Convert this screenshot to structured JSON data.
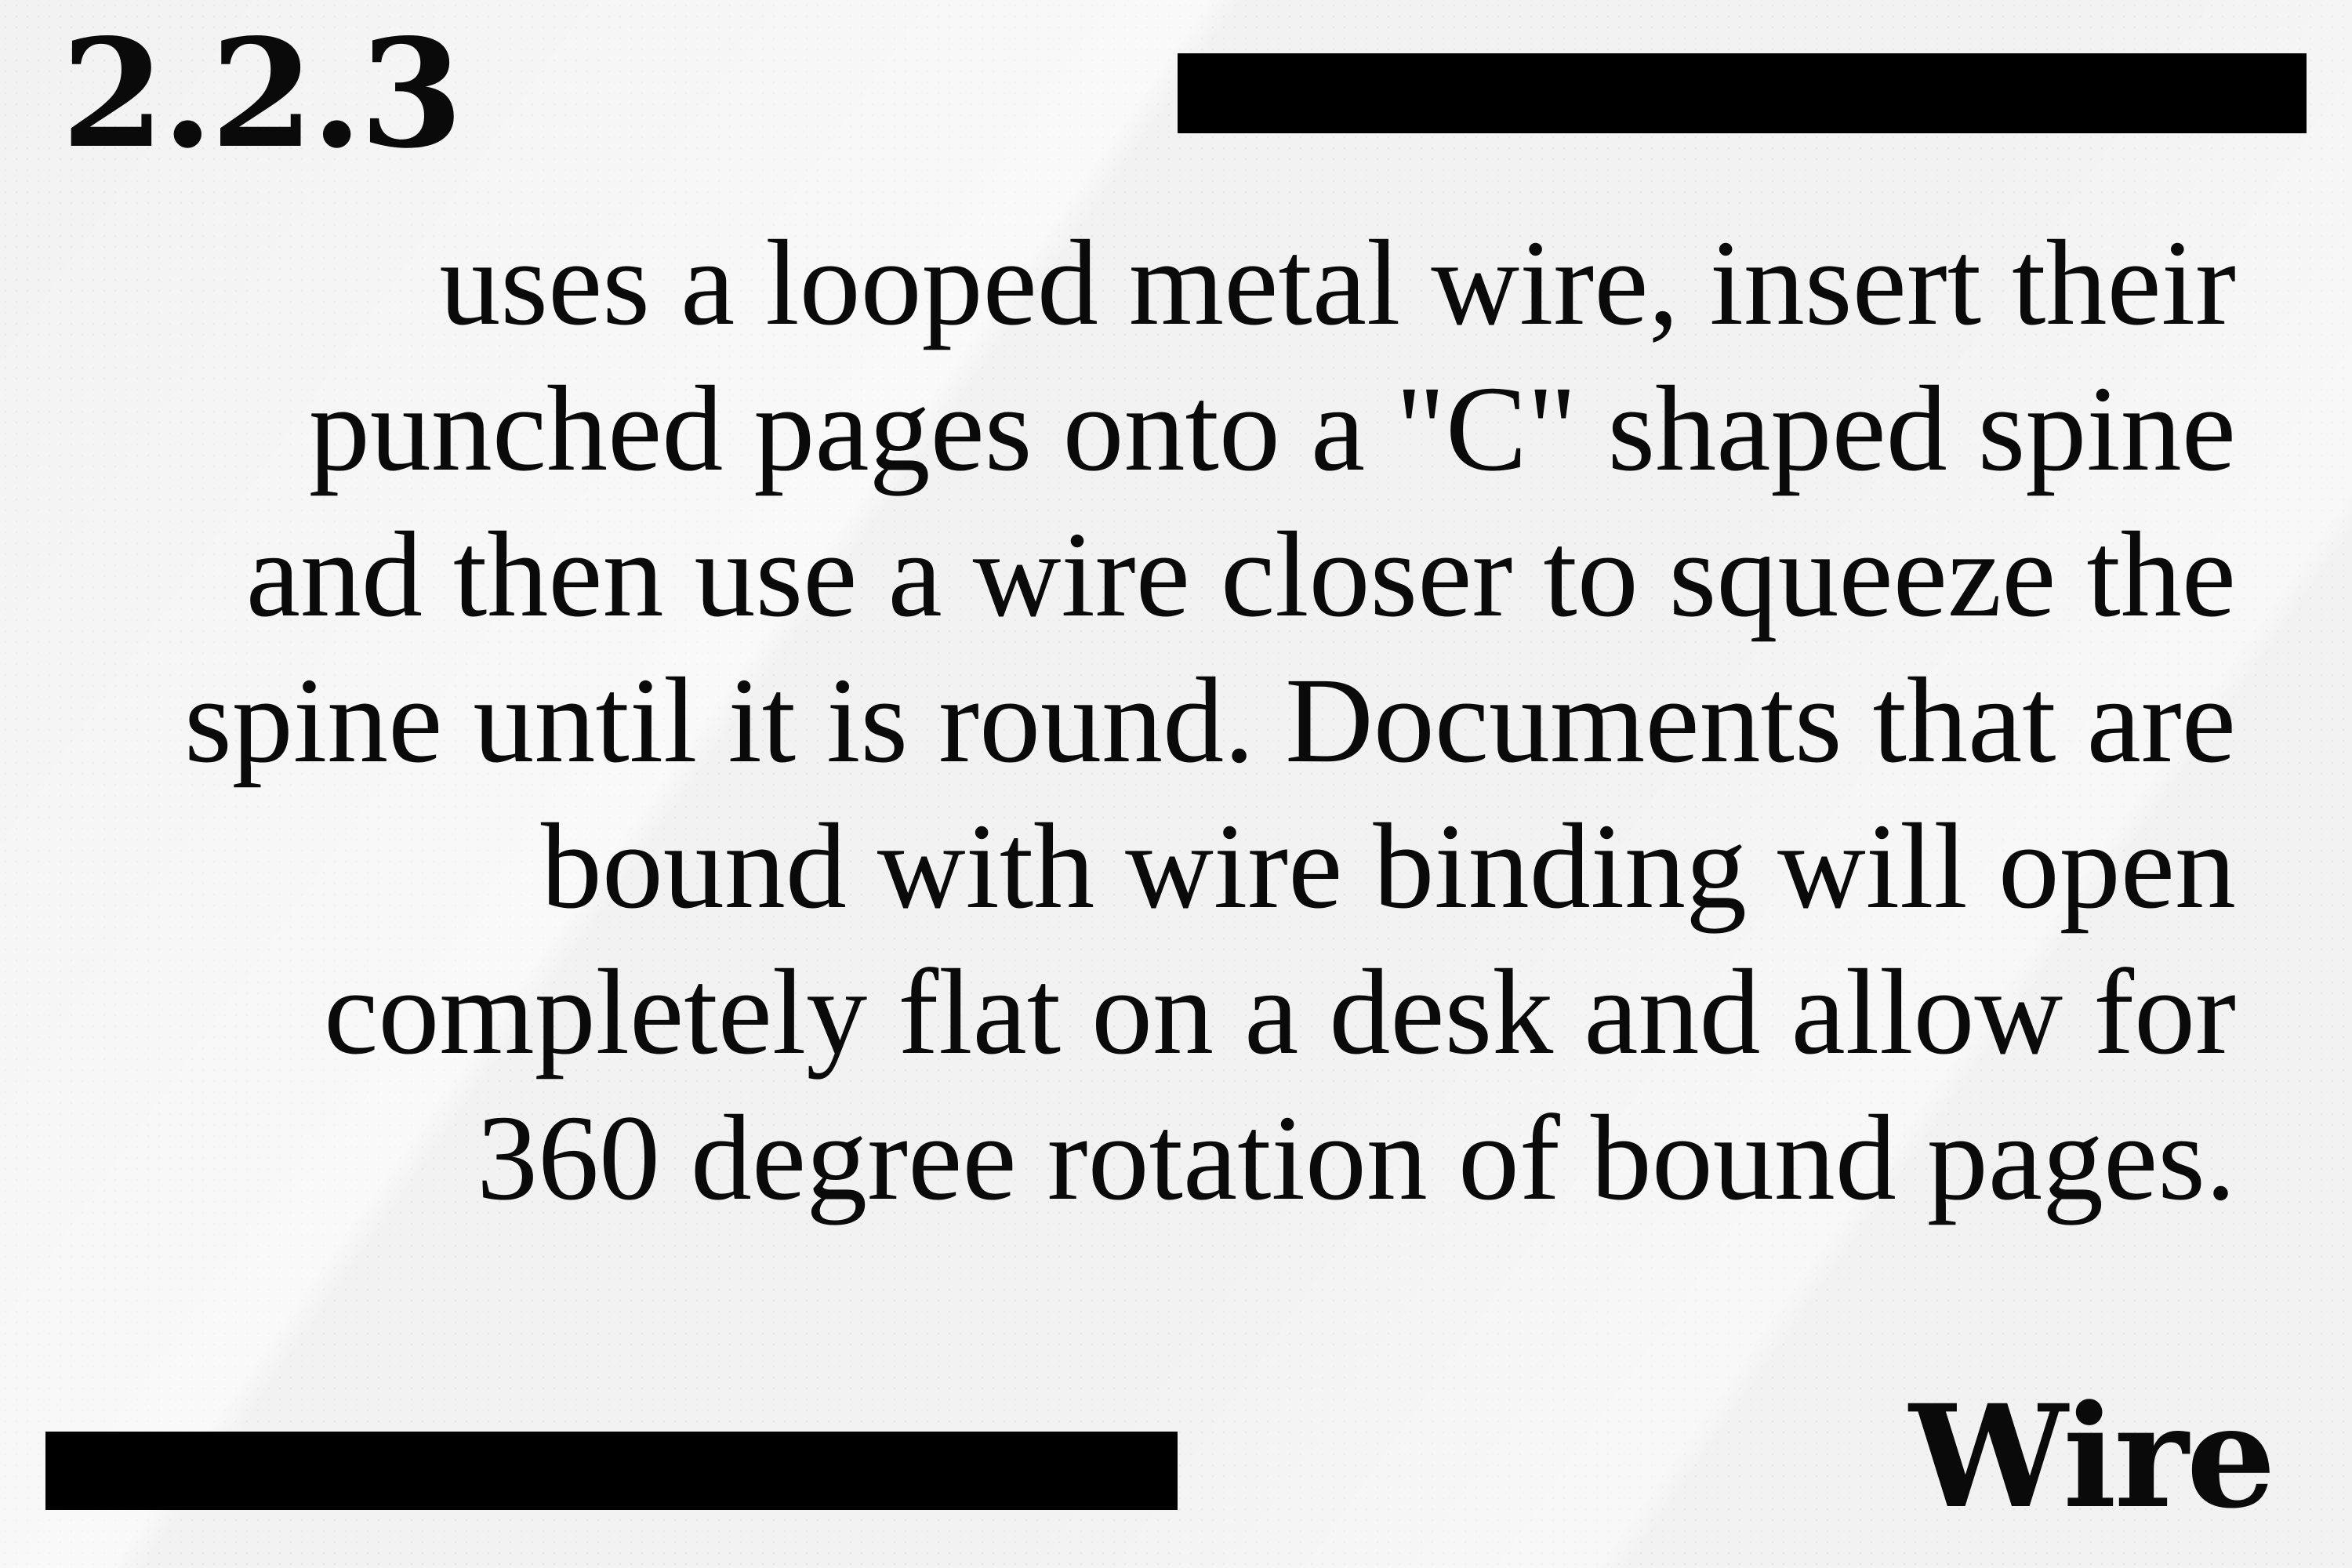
{
  "section_number": "2.2.3",
  "heading": "Wire",
  "body_text": "uses a looped metal wire, insert their punched pages onto a \"C\" shaped spine and then use a wire closer to squeeze the spine until it is round. Documents that are bound with wire binding will open completely flat on a desk and allow for 360 degree rotation of bound pages.",
  "colors": {
    "background": "#f2f2f2",
    "text": "#0a0a0a",
    "bars": "#000000"
  }
}
